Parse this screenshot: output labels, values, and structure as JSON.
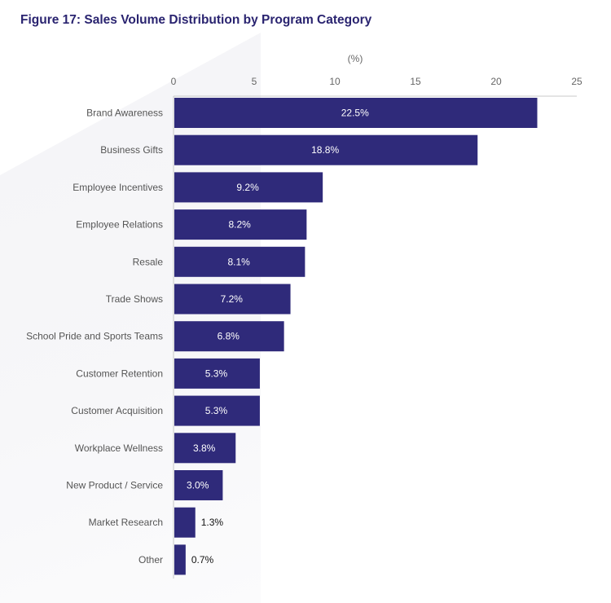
{
  "chart_data": {
    "type": "bar",
    "orientation": "horizontal",
    "title": "Figure 17: Sales Volume Distribution by Program Category",
    "xlabel": "(%)",
    "ylabel": "",
    "xlim": [
      0,
      25
    ],
    "xticks": [
      0,
      5,
      10,
      15,
      20,
      25
    ],
    "xtick_labels": [
      "0",
      "5",
      "10",
      "15",
      "20",
      "25"
    ],
    "axis_position": "top",
    "grid": false,
    "categories": [
      "Brand Awareness",
      "Business Gifts",
      "Employee Incentives",
      "Employee Relations",
      "Resale",
      "Trade Shows",
      "School Pride and Sports Teams",
      "Customer Retention",
      "Customer Acquisition",
      "Workplace Wellness",
      "New Product / Service",
      "Market Research",
      "Other"
    ],
    "values": [
      22.5,
      18.8,
      9.2,
      8.2,
      8.1,
      7.2,
      6.8,
      5.3,
      5.3,
      3.8,
      3.0,
      1.3,
      0.7
    ],
    "data_labels": [
      "22.5%",
      "18.8%",
      "9.2%",
      "8.2%",
      "8.1%",
      "7.2%",
      "6.8%",
      "5.3%",
      "5.3%",
      "3.8%",
      "3.0%",
      "1.3%",
      "0.7%"
    ],
    "colors": {
      "bar": "#2f2a7a",
      "title": "#2a2470"
    }
  }
}
